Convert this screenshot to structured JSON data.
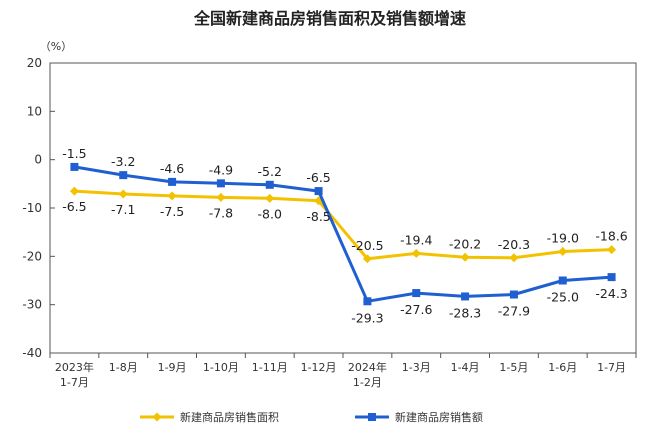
{
  "chart_data": {
    "type": "line",
    "title": "全国新建商品房销售面积及销售额增速",
    "ylabel": "（%）",
    "ylim": [
      -40,
      20
    ],
    "yticks": [
      20,
      10,
      0,
      -10,
      -20,
      -30,
      -40
    ],
    "grid": false,
    "legend_position": "bottom",
    "categories": [
      [
        "2023年",
        "1-7月"
      ],
      [
        "1-8月"
      ],
      [
        "1-9月"
      ],
      [
        "1-10月"
      ],
      [
        "1-11月"
      ],
      [
        "1-12月"
      ],
      [
        "2024年",
        "1-2月"
      ],
      [
        "1-3月"
      ],
      [
        "1-4月"
      ],
      [
        "1-5月"
      ],
      [
        "1-6月"
      ],
      [
        "1-7月"
      ]
    ],
    "series": [
      {
        "name": "新建商品房销售面积",
        "color": "#f2c200",
        "values": [
          -6.5,
          -7.1,
          -7.5,
          -7.8,
          -8.0,
          -8.5,
          -20.5,
          -19.4,
          -20.2,
          -20.3,
          -19.0,
          -18.6
        ],
        "labels": [
          "-6.5",
          "-7.1",
          "-7.5",
          "-7.8",
          "-8.0",
          "-8.5",
          "-20.5",
          "-19.4",
          "-20.2",
          "-20.3",
          "-19.0",
          "-18.6"
        ]
      },
      {
        "name": "新建商品房销售额",
        "color": "#1f5fd1",
        "values": [
          -1.5,
          -3.2,
          -4.6,
          -4.9,
          -5.2,
          -6.5,
          -29.3,
          -27.6,
          -28.3,
          -27.9,
          -25.0,
          -24.3
        ],
        "labels": [
          "-1.5",
          "-3.2",
          "-4.6",
          "-4.9",
          "-5.2",
          "-6.5",
          "-29.3",
          "-27.6",
          "-28.3",
          "-27.9",
          "-25.0",
          "-24.3"
        ]
      }
    ]
  }
}
